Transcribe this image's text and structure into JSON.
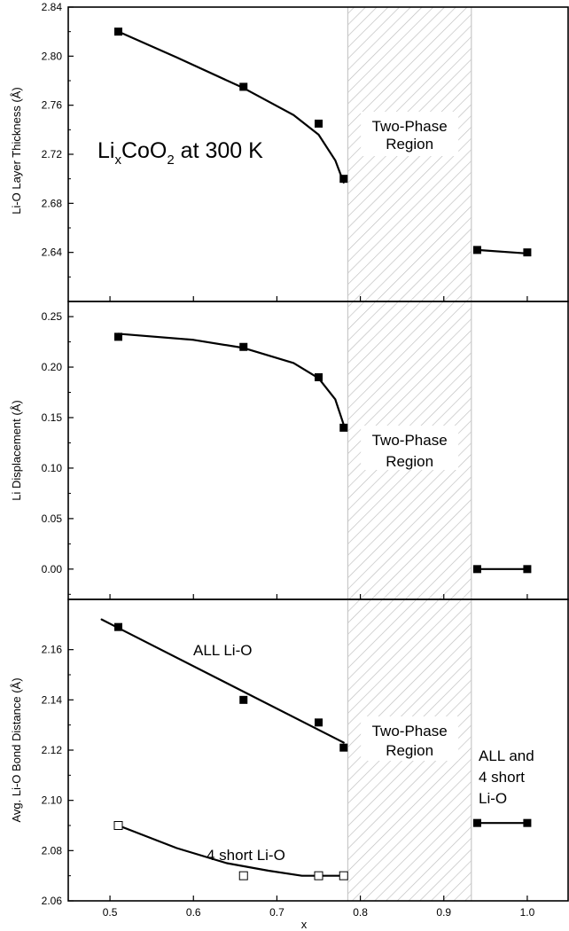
{
  "chart_data": [
    {
      "type": "line",
      "panel": "top",
      "ylabel": "Li-O Layer Thickness (Å)",
      "xlabel": "",
      "ylim": [
        2.6,
        2.84
      ],
      "yticks": [
        "2.64",
        "2.68",
        "2.72",
        "2.76",
        "2.80",
        "2.84"
      ],
      "xlim": [
        0.45,
        1.05
      ],
      "title": {
        "main": "Li",
        "sub": "x",
        "mid": "CoO",
        "sub2": "2",
        "tail": " at 300 K"
      },
      "region": {
        "x": [
          0.785,
          0.933
        ],
        "label_line1": "Two-Phase",
        "label_line2": "Region"
      },
      "series": [
        {
          "marker": "filled-square",
          "x": [
            0.51,
            0.66,
            0.75,
            0.78,
            0.94,
            1.0
          ],
          "y": [
            2.82,
            2.775,
            2.745,
            2.7,
            2.642,
            2.64
          ],
          "fit_a": {
            "x": [
              0.51,
              0.58,
              0.66,
              0.72,
              0.75,
              0.77,
              0.78
            ],
            "y": [
              2.82,
              2.799,
              2.774,
              2.752,
              2.736,
              2.715,
              2.697
            ]
          },
          "fit_b": {
            "x": [
              0.94,
              1.003
            ],
            "y": [
              2.642,
              2.639
            ]
          }
        }
      ]
    },
    {
      "type": "line",
      "panel": "middle",
      "ylabel": "Li Displacement (Å)",
      "xlabel": "",
      "ylim": [
        -0.03,
        0.265
      ],
      "yticks": [
        "0.00",
        "0.05",
        "0.10",
        "0.15",
        "0.20",
        "0.25"
      ],
      "xlim": [
        0.45,
        1.05
      ],
      "region": {
        "x": [
          0.785,
          0.933
        ],
        "label_line1": "Two-Phase",
        "label_line2": "Region"
      },
      "series": [
        {
          "marker": "filled-square",
          "x": [
            0.51,
            0.66,
            0.75,
            0.78,
            0.94,
            1.0
          ],
          "y": [
            0.23,
            0.22,
            0.19,
            0.14,
            0.0,
            0.0
          ],
          "fit_a": {
            "x": [
              0.51,
              0.6,
              0.66,
              0.72,
              0.75,
              0.77,
              0.78
            ],
            "y": [
              0.233,
              0.227,
              0.219,
              0.204,
              0.189,
              0.168,
              0.143
            ]
          },
          "fit_b": {
            "x": [
              0.94,
              1.0
            ],
            "y": [
              0.0,
              0.0
            ]
          }
        }
      ]
    },
    {
      "type": "line",
      "panel": "bottom",
      "ylabel": "Avg. Li-O Bond Distance (Å)",
      "xlabel": "x",
      "ylim": [
        2.06,
        2.18
      ],
      "yticks": [
        "2.06",
        "2.08",
        "2.10",
        "2.12",
        "2.14",
        "2.16"
      ],
      "xlim": [
        0.45,
        1.05
      ],
      "xticks": [
        "0.5",
        "0.6",
        "0.7",
        "0.8",
        "0.9",
        "1.0"
      ],
      "region": {
        "x": [
          0.785,
          0.933
        ],
        "label_line1": "Two-Phase",
        "label_line2": "Region"
      },
      "annotations": {
        "all": "ALL Li-O",
        "short": "4 short Li-O",
        "right_line1": "ALL and",
        "right_line2": "4 short",
        "right_line3": "Li-O"
      },
      "series": [
        {
          "name": "ALL Li-O",
          "marker": "filled-square",
          "x": [
            0.51,
            0.66,
            0.75,
            0.78
          ],
          "y": [
            2.169,
            2.14,
            2.131,
            2.121
          ],
          "fit_a": {
            "x": [
              0.49,
              0.78
            ],
            "y": [
              2.172,
              2.123
            ]
          }
        },
        {
          "name": "4 short Li-O",
          "marker": "open-square",
          "x": [
            0.51,
            0.66,
            0.75,
            0.78
          ],
          "y": [
            2.09,
            2.07,
            2.07,
            2.07
          ],
          "fit_a": {
            "x": [
              0.51,
              0.58,
              0.64,
              0.69,
              0.73,
              0.76,
              0.78
            ],
            "y": [
              2.09,
              2.081,
              2.075,
              2.072,
              2.07,
              2.07,
              2.07
            ]
          }
        },
        {
          "name": "ALL and 4 short Li-O",
          "marker": "filled-square",
          "x": [
            0.94,
            1.0
          ],
          "y": [
            2.091,
            2.091
          ],
          "fit_a": {
            "x": [
              0.94,
              1.0
            ],
            "y": [
              2.091,
              2.091
            ]
          }
        }
      ]
    }
  ]
}
